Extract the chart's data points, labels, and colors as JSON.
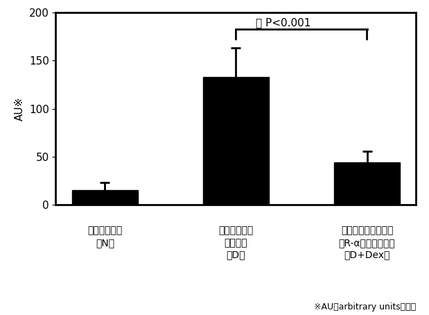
{
  "categories_line1": [
    "健常ラット群",
    "糖尿病モデル",
    "糖尿病モデルラット"
  ],
  "categories_line2": [
    "（N）",
    "ラット群",
    "＋R-αリポ酸投与群"
  ],
  "categories_line3": [
    "",
    "（D）",
    "（D+Dex）"
  ],
  "values": [
    15,
    133,
    44
  ],
  "errors": [
    8,
    30,
    12
  ],
  "bar_color": "#000000",
  "bar_width": 0.5,
  "ylim": [
    0,
    200
  ],
  "yticks": [
    0,
    50,
    100,
    150,
    200
  ],
  "ylabel": "AU※",
  "footnote": "※AUはarbitrary unitsの略。",
  "significance_label": "＊ P<0.001",
  "background_color": "#ffffff",
  "edge_color": "#000000",
  "label_fontsize": 10,
  "tick_fontsize": 11,
  "ylabel_fontsize": 11,
  "footnote_fontsize": 9
}
